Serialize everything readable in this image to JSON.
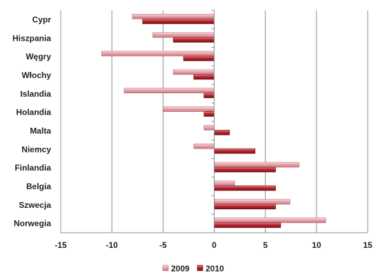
{
  "chart_data": {
    "type": "bar",
    "orientation": "horizontal",
    "categories": [
      "Cypr",
      "Hiszpania",
      "Węgry",
      "Włochy",
      "Islandia",
      "Holandia",
      "Malta",
      "Niemcy",
      "Finlandia",
      "Belgia",
      "Szwecja",
      "Norwegia"
    ],
    "series": [
      {
        "name": "2009",
        "color": "#e8a0a6",
        "values": [
          -8,
          -6,
          -11,
          -4,
          -8.8,
          -5,
          -1,
          -2,
          8.3,
          2,
          7.4,
          10.9
        ]
      },
      {
        "name": "2010",
        "color": "#b8262e",
        "values": [
          -7,
          -4,
          -3,
          -2,
          -1,
          -1,
          1.5,
          4,
          6,
          6,
          6,
          6.5
        ]
      }
    ],
    "xlim": [
      -15,
      15
    ],
    "xticks": [
      -15,
      -10,
      -5,
      0,
      5,
      10,
      15
    ],
    "title": "",
    "xlabel": "",
    "ylabel": "",
    "grid": "vertical",
    "legend_position": "bottom"
  }
}
